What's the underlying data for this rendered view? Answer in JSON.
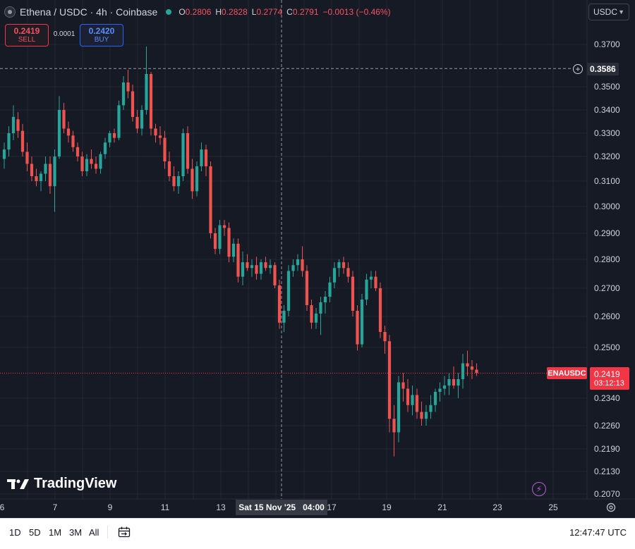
{
  "header": {
    "symbol": "Ethena / USDC · 4h · Coinbase",
    "ohlc": [
      {
        "label": "O",
        "value": "0.2806"
      },
      {
        "label": "H",
        "value": "0.2828"
      },
      {
        "label": "L",
        "value": "0.2774"
      },
      {
        "label": "C",
        "value": "0.2791"
      },
      {
        "label": "",
        "value": "−0.0013 (−0.46%)"
      }
    ]
  },
  "trade": {
    "sell_price": "0.2419",
    "sell_label": "SELL",
    "spread": "0.0001",
    "buy_price": "0.2420",
    "buy_label": "BUY"
  },
  "currency": "USDC",
  "price_scale": {
    "labels": [
      "0.3700",
      "0.3500",
      "0.3400",
      "0.3300",
      "0.3200",
      "0.3100",
      "0.3000",
      "0.2900",
      "0.2800",
      "0.2700",
      "0.2600",
      "0.2500",
      "0.2340",
      "0.2260",
      "0.2190",
      "0.2130",
      "0.2070"
    ],
    "crosshair_price": "0.3586",
    "symbol_tag": "ENAUSDC",
    "last_price": "0.2419",
    "countdown": "03:12:13"
  },
  "time_axis": {
    "labels": [
      "6",
      "7",
      "9",
      "11",
      "13",
      "17",
      "19",
      "21",
      "23",
      "25"
    ],
    "crosshair_date": "Sat 15 Nov '25",
    "crosshair_time": "04:00"
  },
  "watermark": "TradingView",
  "bottom_bar": {
    "ranges": [
      "1D",
      "5D",
      "1M",
      "3M",
      "All"
    ],
    "clock": "12:47:47 UTC"
  },
  "colors": {
    "background": "#161a25",
    "up": "#26a69a",
    "down": "#ef5350",
    "last_price": "#f23645"
  },
  "chart_data": {
    "type": "candlestick",
    "title": "Ethena / USDC · 4h · Coinbase",
    "xlabel": "",
    "ylabel": "",
    "grid": true,
    "legend": "none",
    "candles": [
      {
        "o": 0.319,
        "h": 0.326,
        "l": 0.315,
        "c": 0.323
      },
      {
        "o": 0.323,
        "h": 0.333,
        "l": 0.32,
        "c": 0.33
      },
      {
        "o": 0.33,
        "h": 0.342,
        "l": 0.327,
        "c": 0.337
      },
      {
        "o": 0.336,
        "h": 0.339,
        "l": 0.328,
        "c": 0.331
      },
      {
        "o": 0.331,
        "h": 0.334,
        "l": 0.32,
        "c": 0.322
      },
      {
        "o": 0.322,
        "h": 0.326,
        "l": 0.314,
        "c": 0.317
      },
      {
        "o": 0.317,
        "h": 0.32,
        "l": 0.31,
        "c": 0.312
      },
      {
        "o": 0.312,
        "h": 0.315,
        "l": 0.308,
        "c": 0.31
      },
      {
        "o": 0.31,
        "h": 0.314,
        "l": 0.306,
        "c": 0.313
      },
      {
        "o": 0.313,
        "h": 0.32,
        "l": 0.31,
        "c": 0.317
      },
      {
        "o": 0.317,
        "h": 0.32,
        "l": 0.305,
        "c": 0.308
      },
      {
        "o": 0.308,
        "h": 0.323,
        "l": 0.298,
        "c": 0.32
      },
      {
        "o": 0.32,
        "h": 0.346,
        "l": 0.319,
        "c": 0.34
      },
      {
        "o": 0.34,
        "h": 0.343,
        "l": 0.33,
        "c": 0.332
      },
      {
        "o": 0.332,
        "h": 0.335,
        "l": 0.326,
        "c": 0.329
      },
      {
        "o": 0.329,
        "h": 0.331,
        "l": 0.322,
        "c": 0.324
      },
      {
        "o": 0.324,
        "h": 0.326,
        "l": 0.318,
        "c": 0.32
      },
      {
        "o": 0.32,
        "h": 0.322,
        "l": 0.312,
        "c": 0.314
      },
      {
        "o": 0.314,
        "h": 0.321,
        "l": 0.312,
        "c": 0.319
      },
      {
        "o": 0.319,
        "h": 0.323,
        "l": 0.315,
        "c": 0.317
      },
      {
        "o": 0.317,
        "h": 0.32,
        "l": 0.313,
        "c": 0.315
      },
      {
        "o": 0.315,
        "h": 0.322,
        "l": 0.313,
        "c": 0.321
      },
      {
        "o": 0.321,
        "h": 0.328,
        "l": 0.319,
        "c": 0.326
      },
      {
        "o": 0.326,
        "h": 0.331,
        "l": 0.324,
        "c": 0.33
      },
      {
        "o": 0.33,
        "h": 0.332,
        "l": 0.326,
        "c": 0.328
      },
      {
        "o": 0.328,
        "h": 0.344,
        "l": 0.327,
        "c": 0.342
      },
      {
        "o": 0.342,
        "h": 0.355,
        "l": 0.34,
        "c": 0.352
      },
      {
        "o": 0.352,
        "h": 0.358,
        "l": 0.345,
        "c": 0.348
      },
      {
        "o": 0.348,
        "h": 0.351,
        "l": 0.335,
        "c": 0.337
      },
      {
        "o": 0.337,
        "h": 0.34,
        "l": 0.33,
        "c": 0.332
      },
      {
        "o": 0.332,
        "h": 0.342,
        "l": 0.329,
        "c": 0.34
      },
      {
        "o": 0.34,
        "h": 0.369,
        "l": 0.338,
        "c": 0.356
      },
      {
        "o": 0.356,
        "h": 0.357,
        "l": 0.329,
        "c": 0.332
      },
      {
        "o": 0.332,
        "h": 0.334,
        "l": 0.326,
        "c": 0.329
      },
      {
        "o": 0.329,
        "h": 0.333,
        "l": 0.325,
        "c": 0.328
      },
      {
        "o": 0.328,
        "h": 0.331,
        "l": 0.315,
        "c": 0.318
      },
      {
        "o": 0.318,
        "h": 0.322,
        "l": 0.31,
        "c": 0.312
      },
      {
        "o": 0.312,
        "h": 0.316,
        "l": 0.306,
        "c": 0.308
      },
      {
        "o": 0.308,
        "h": 0.314,
        "l": 0.305,
        "c": 0.312
      },
      {
        "o": 0.312,
        "h": 0.332,
        "l": 0.31,
        "c": 0.33
      },
      {
        "o": 0.33,
        "h": 0.333,
        "l": 0.313,
        "c": 0.315
      },
      {
        "o": 0.315,
        "h": 0.319,
        "l": 0.303,
        "c": 0.306
      },
      {
        "o": 0.306,
        "h": 0.318,
        "l": 0.304,
        "c": 0.316
      },
      {
        "o": 0.316,
        "h": 0.326,
        "l": 0.314,
        "c": 0.323
      },
      {
        "o": 0.323,
        "h": 0.325,
        "l": 0.312,
        "c": 0.316
      },
      {
        "o": 0.316,
        "h": 0.318,
        "l": 0.288,
        "c": 0.29
      },
      {
        "o": 0.29,
        "h": 0.292,
        "l": 0.282,
        "c": 0.284
      },
      {
        "o": 0.284,
        "h": 0.295,
        "l": 0.282,
        "c": 0.293
      },
      {
        "o": 0.293,
        "h": 0.295,
        "l": 0.289,
        "c": 0.292
      },
      {
        "o": 0.292,
        "h": 0.294,
        "l": 0.279,
        "c": 0.281
      },
      {
        "o": 0.281,
        "h": 0.288,
        "l": 0.279,
        "c": 0.286
      },
      {
        "o": 0.286,
        "h": 0.288,
        "l": 0.272,
        "c": 0.274
      },
      {
        "o": 0.274,
        "h": 0.283,
        "l": 0.271,
        "c": 0.279
      },
      {
        "o": 0.279,
        "h": 0.282,
        "l": 0.276,
        "c": 0.277
      },
      {
        "o": 0.277,
        "h": 0.28,
        "l": 0.274,
        "c": 0.278
      },
      {
        "o": 0.278,
        "h": 0.281,
        "l": 0.273,
        "c": 0.275
      },
      {
        "o": 0.275,
        "h": 0.28,
        "l": 0.273,
        "c": 0.279
      },
      {
        "o": 0.279,
        "h": 0.281,
        "l": 0.276,
        "c": 0.277
      },
      {
        "o": 0.277,
        "h": 0.28,
        "l": 0.275,
        "c": 0.278
      },
      {
        "o": 0.278,
        "h": 0.279,
        "l": 0.27,
        "c": 0.271
      },
      {
        "o": 0.271,
        "h": 0.273,
        "l": 0.256,
        "c": 0.258
      },
      {
        "o": 0.258,
        "h": 0.264,
        "l": 0.255,
        "c": 0.262
      },
      {
        "o": 0.262,
        "h": 0.278,
        "l": 0.26,
        "c": 0.276
      },
      {
        "o": 0.276,
        "h": 0.28,
        "l": 0.274,
        "c": 0.278
      },
      {
        "o": 0.278,
        "h": 0.282,
        "l": 0.276,
        "c": 0.28
      },
      {
        "o": 0.28,
        "h": 0.285,
        "l": 0.274,
        "c": 0.276
      },
      {
        "o": 0.276,
        "h": 0.278,
        "l": 0.262,
        "c": 0.264
      },
      {
        "o": 0.264,
        "h": 0.266,
        "l": 0.256,
        "c": 0.258
      },
      {
        "o": 0.258,
        "h": 0.263,
        "l": 0.256,
        "c": 0.261
      },
      {
        "o": 0.261,
        "h": 0.267,
        "l": 0.254,
        "c": 0.265
      },
      {
        "o": 0.265,
        "h": 0.269,
        "l": 0.261,
        "c": 0.267
      },
      {
        "o": 0.267,
        "h": 0.274,
        "l": 0.265,
        "c": 0.272
      },
      {
        "o": 0.272,
        "h": 0.279,
        "l": 0.27,
        "c": 0.277
      },
      {
        "o": 0.277,
        "h": 0.28,
        "l": 0.274,
        "c": 0.279
      },
      {
        "o": 0.279,
        "h": 0.281,
        "l": 0.275,
        "c": 0.277
      },
      {
        "o": 0.277,
        "h": 0.279,
        "l": 0.272,
        "c": 0.274
      },
      {
        "o": 0.274,
        "h": 0.276,
        "l": 0.26,
        "c": 0.262
      },
      {
        "o": 0.262,
        "h": 0.264,
        "l": 0.249,
        "c": 0.251
      },
      {
        "o": 0.251,
        "h": 0.268,
        "l": 0.25,
        "c": 0.266
      },
      {
        "o": 0.266,
        "h": 0.275,
        "l": 0.264,
        "c": 0.273
      },
      {
        "o": 0.273,
        "h": 0.276,
        "l": 0.27,
        "c": 0.274
      },
      {
        "o": 0.274,
        "h": 0.276,
        "l": 0.269,
        "c": 0.27
      },
      {
        "o": 0.27,
        "h": 0.272,
        "l": 0.253,
        "c": 0.255
      },
      {
        "o": 0.255,
        "h": 0.257,
        "l": 0.248,
        "c": 0.252
      },
      {
        "o": 0.252,
        "h": 0.254,
        "l": 0.224,
        "c": 0.228
      },
      {
        "o": 0.228,
        "h": 0.232,
        "l": 0.217,
        "c": 0.224
      },
      {
        "o": 0.224,
        "h": 0.241,
        "l": 0.221,
        "c": 0.239
      },
      {
        "o": 0.239,
        "h": 0.242,
        "l": 0.233,
        "c": 0.237
      },
      {
        "o": 0.237,
        "h": 0.24,
        "l": 0.23,
        "c": 0.232
      },
      {
        "o": 0.232,
        "h": 0.238,
        "l": 0.229,
        "c": 0.235
      },
      {
        "o": 0.235,
        "h": 0.237,
        "l": 0.228,
        "c": 0.23
      },
      {
        "o": 0.23,
        "h": 0.233,
        "l": 0.226,
        "c": 0.228
      },
      {
        "o": 0.228,
        "h": 0.232,
        "l": 0.226,
        "c": 0.23
      },
      {
        "o": 0.23,
        "h": 0.235,
        "l": 0.228,
        "c": 0.232
      },
      {
        "o": 0.232,
        "h": 0.237,
        "l": 0.23,
        "c": 0.236
      },
      {
        "o": 0.236,
        "h": 0.239,
        "l": 0.233,
        "c": 0.237
      },
      {
        "o": 0.237,
        "h": 0.241,
        "l": 0.235,
        "c": 0.238
      },
      {
        "o": 0.238,
        "h": 0.242,
        "l": 0.235,
        "c": 0.24
      },
      {
        "o": 0.24,
        "h": 0.244,
        "l": 0.237,
        "c": 0.238
      },
      {
        "o": 0.238,
        "h": 0.242,
        "l": 0.234,
        "c": 0.24
      },
      {
        "o": 0.24,
        "h": 0.248,
        "l": 0.237,
        "c": 0.245
      },
      {
        "o": 0.245,
        "h": 0.249,
        "l": 0.241,
        "c": 0.244
      },
      {
        "o": 0.244,
        "h": 0.246,
        "l": 0.24,
        "c": 0.243
      },
      {
        "o": 0.243,
        "h": 0.245,
        "l": 0.241,
        "c": 0.2419
      }
    ]
  }
}
